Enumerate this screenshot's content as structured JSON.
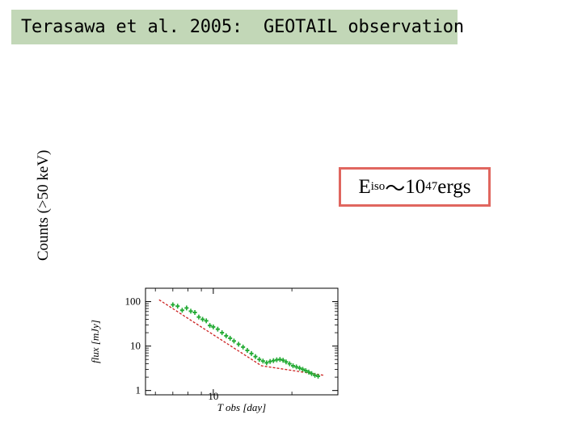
{
  "slide": {
    "title": "Terasawa et al. 2005:  GEOTAIL observation",
    "side_label": "Counts (>50 keV)",
    "energy": {
      "base": "E",
      "sub": "iso",
      "tilde": "～",
      "mantissa": "10",
      "exponent": "47",
      "unit": " ergs"
    }
  },
  "colors": {
    "title_bg": "#c2d7b7",
    "box_border": "#e0665f",
    "fit_line": "#cc2020",
    "points": "#22aa33"
  },
  "chart_data": {
    "type": "scatter",
    "title": "",
    "xlabel": "T obs [day]",
    "ylabel": "flux [mJy]",
    "x_scale": "log",
    "y_scale": "log",
    "xlim": [
      5.5,
      30
    ],
    "ylim": [
      0.8,
      200
    ],
    "x_ticks": [
      {
        "value": 10,
        "label": "10"
      }
    ],
    "y_ticks": [
      {
        "value": 1,
        "label": "1"
      },
      {
        "value": 10,
        "label": "10"
      },
      {
        "value": 100,
        "label": "100"
      }
    ],
    "series": [
      {
        "points": [
          [
            7.0,
            85
          ],
          [
            7.3,
            79
          ],
          [
            7.6,
            64
          ],
          [
            7.9,
            72
          ],
          [
            8.2,
            61
          ],
          [
            8.5,
            57
          ],
          [
            8.8,
            45
          ],
          [
            9.1,
            40
          ],
          [
            9.4,
            37
          ],
          [
            9.7,
            29
          ],
          [
            10.0,
            27
          ],
          [
            10.4,
            24
          ],
          [
            10.8,
            20
          ],
          [
            11.2,
            17
          ],
          [
            11.6,
            15
          ],
          [
            12.0,
            13
          ],
          [
            12.5,
            11
          ],
          [
            13.0,
            9.5
          ],
          [
            13.5,
            8.0
          ],
          [
            14.0,
            6.8
          ],
          [
            14.5,
            5.8
          ],
          [
            15.0,
            5.0
          ],
          [
            15.5,
            4.6
          ],
          [
            16.0,
            4.2
          ],
          [
            16.5,
            4.5
          ],
          [
            17.0,
            4.7
          ],
          [
            17.5,
            4.9
          ],
          [
            18.0,
            5.0
          ],
          [
            18.5,
            4.8
          ],
          [
            19.0,
            4.4
          ],
          [
            19.6,
            4.0
          ],
          [
            20.2,
            3.6
          ],
          [
            20.8,
            3.4
          ],
          [
            21.4,
            3.2
          ],
          [
            22.0,
            3.0
          ],
          [
            22.6,
            2.8
          ],
          [
            23.2,
            2.6
          ],
          [
            23.8,
            2.4
          ],
          [
            24.5,
            2.2
          ],
          [
            25.2,
            2.1
          ]
        ]
      }
    ],
    "fit_line": [
      [
        6.2,
        110
      ],
      [
        15.3,
        3.6
      ],
      [
        26.5,
        2.2
      ]
    ]
  }
}
